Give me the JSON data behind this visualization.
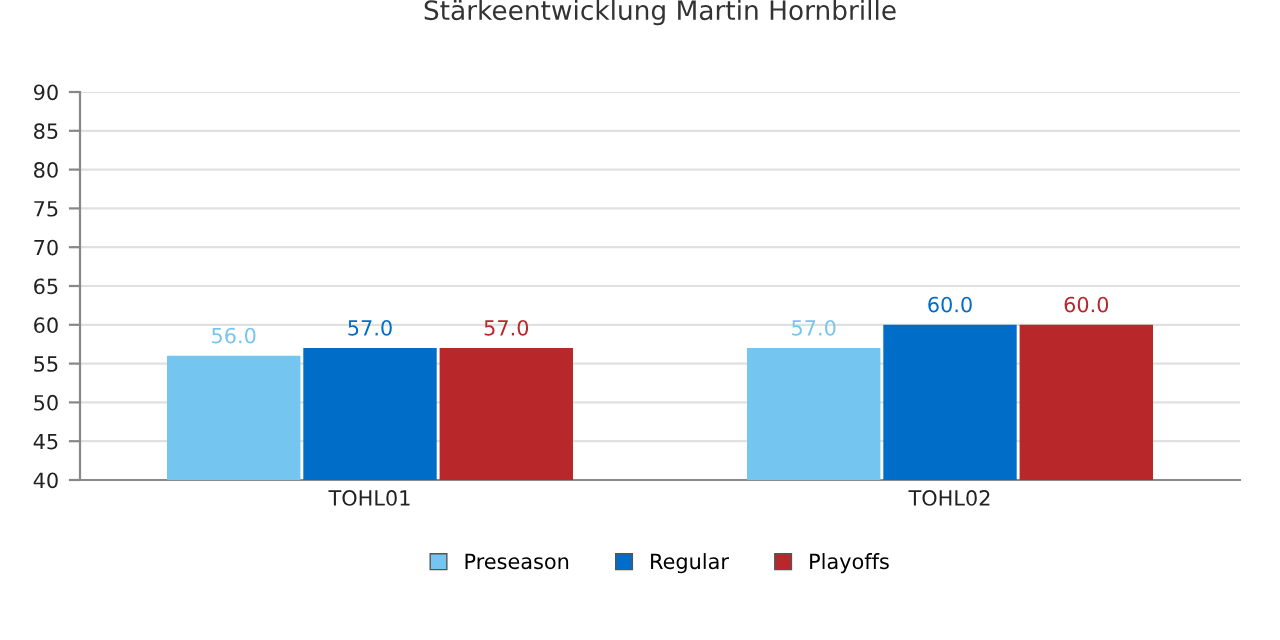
{
  "chart_data": {
    "type": "bar",
    "title": "Stärkeentwicklung Martin Hornbrille",
    "categories": [
      "TOHL01",
      "TOHL02"
    ],
    "series": [
      {
        "name": "Preseason",
        "color": "#74c5f0",
        "values": [
          56,
          57
        ],
        "value_labels": [
          "56.0",
          "57.0"
        ]
      },
      {
        "name": "Regular",
        "color": "#006ec8",
        "values": [
          57,
          60
        ],
        "value_labels": [
          "57.0",
          "60.0"
        ]
      },
      {
        "name": "Playoffs",
        "color": "#b8272a",
        "values": [
          57,
          60
        ],
        "value_labels": [
          "57.0",
          "60.0"
        ]
      }
    ],
    "ylim": [
      40,
      90
    ],
    "yticks": [
      40,
      45,
      50,
      55,
      60,
      65,
      70,
      75,
      80,
      85,
      90
    ],
    "grid": "y",
    "legend": "bottom"
  }
}
